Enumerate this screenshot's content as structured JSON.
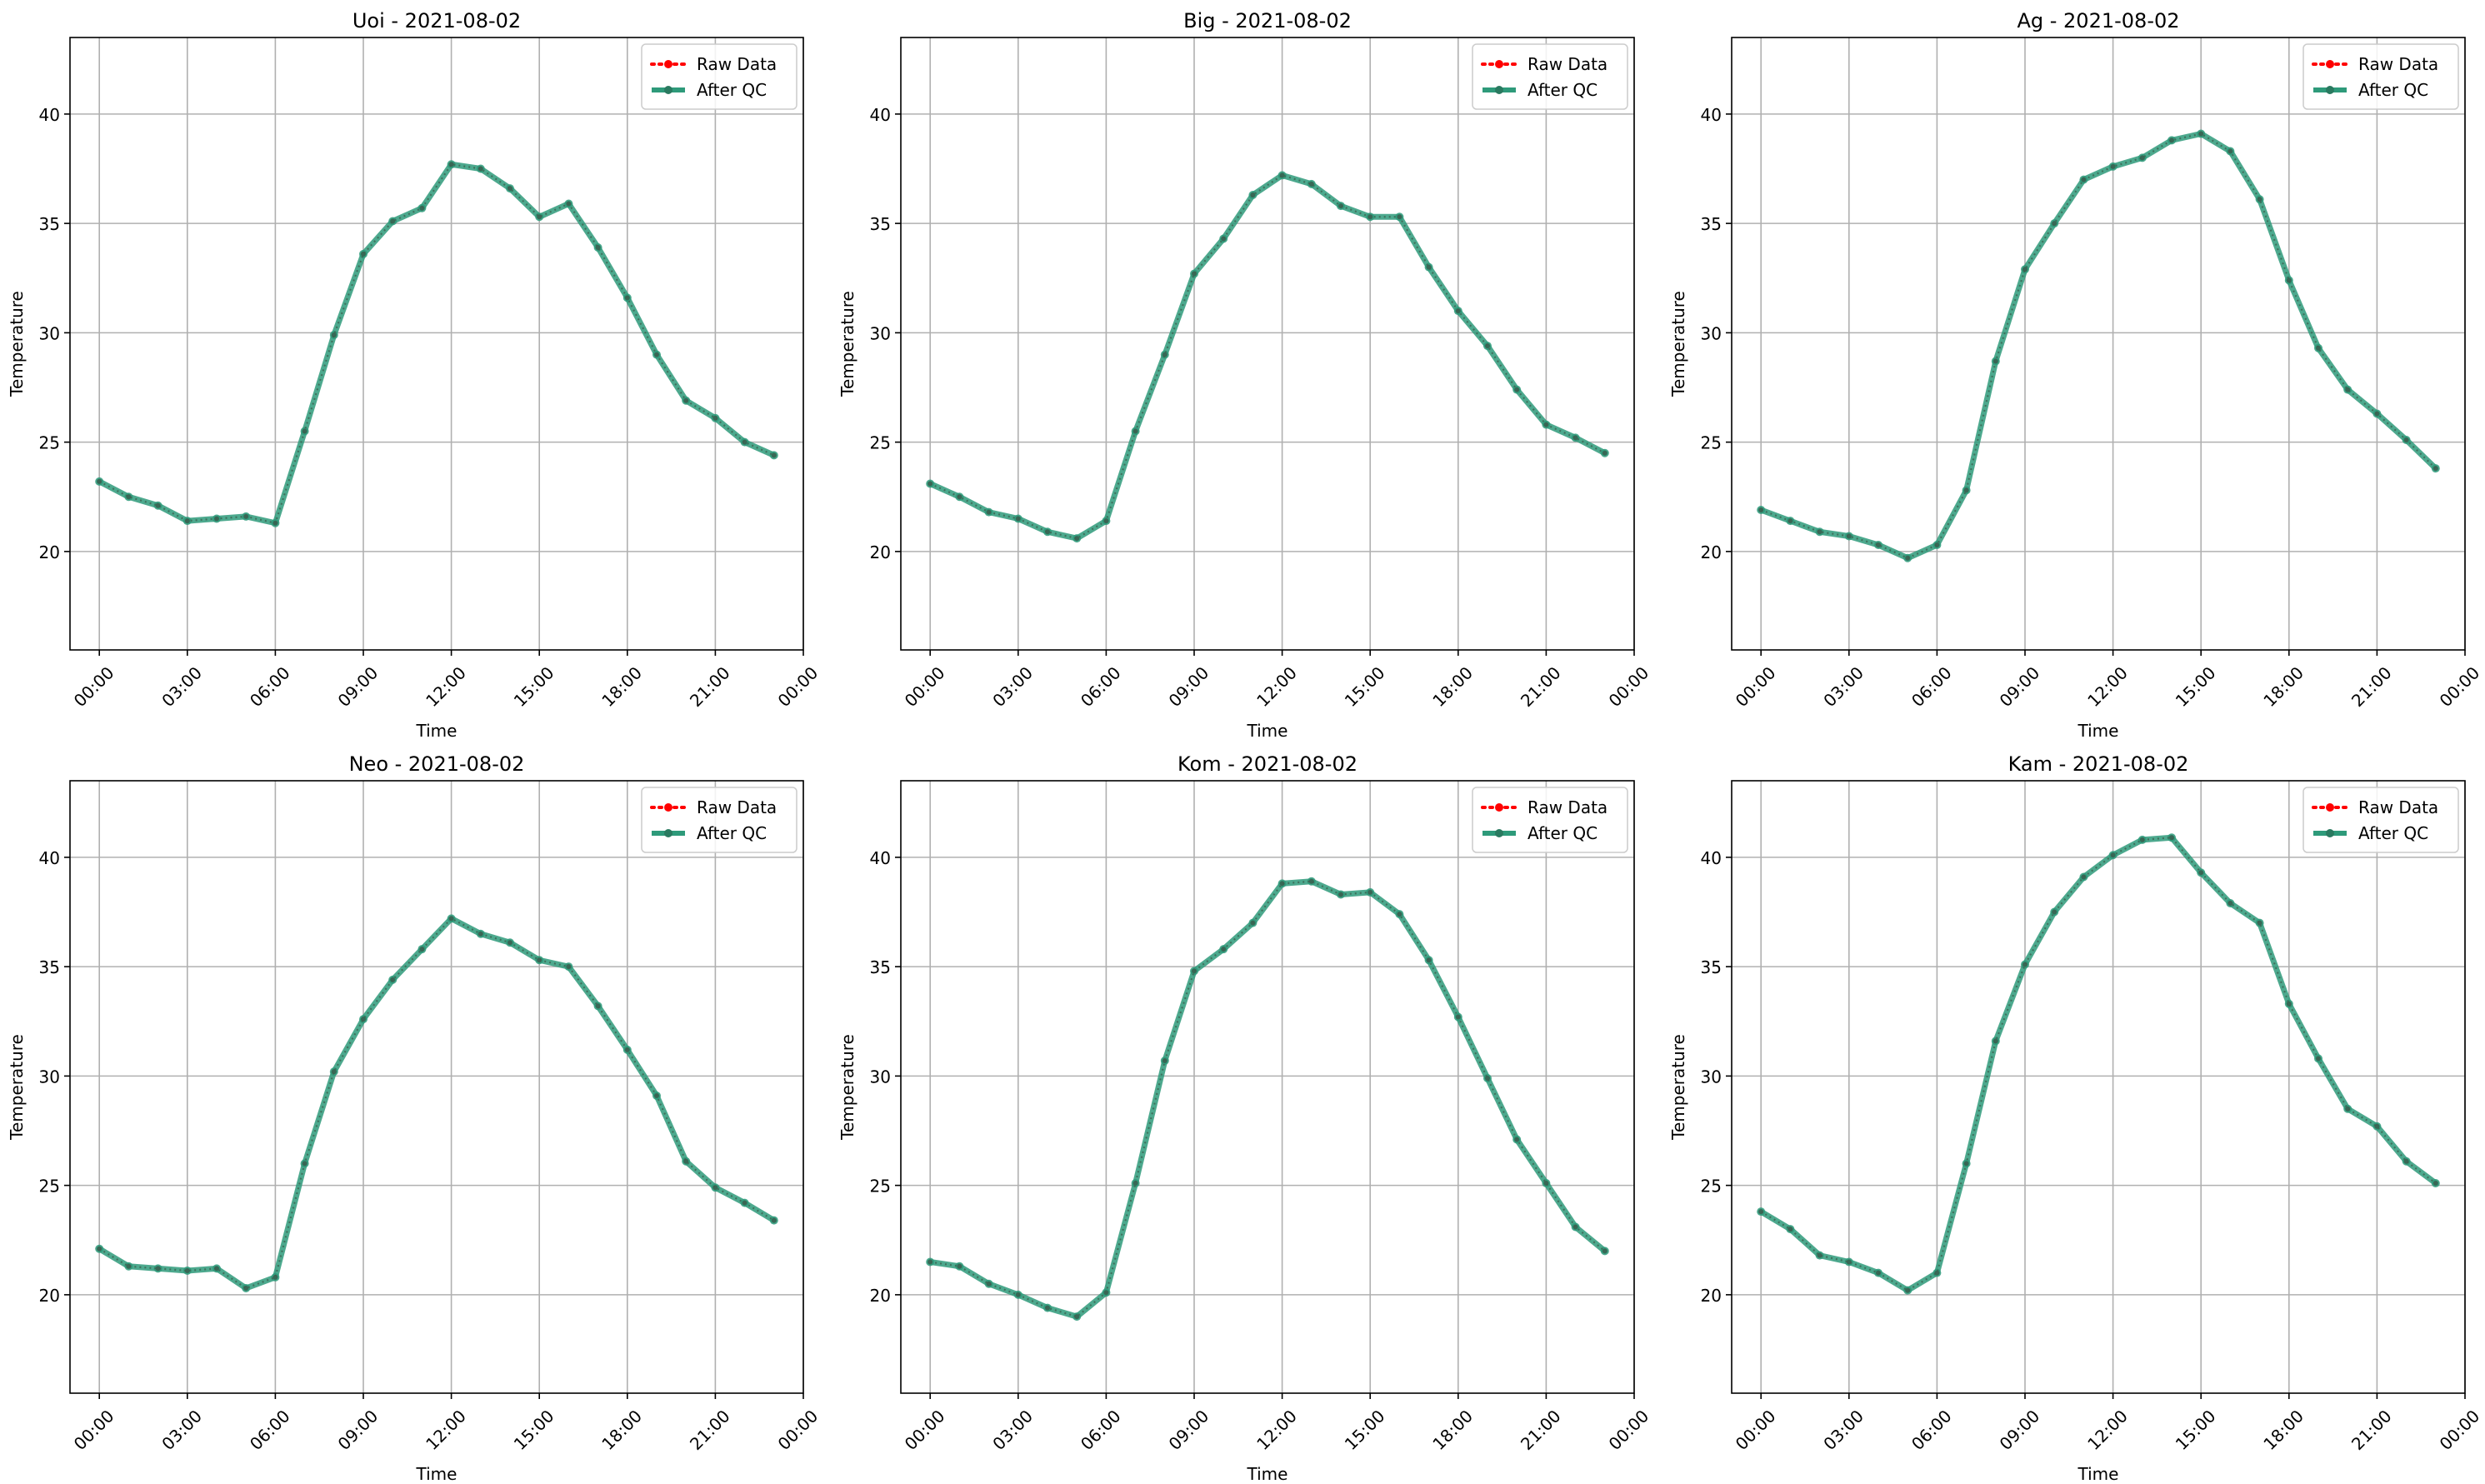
{
  "figure": {
    "background": "#ffffff",
    "raw_color": "#ff0000",
    "qc_color": "#2e9a7a",
    "grid_color": "#b0b0b0"
  },
  "chart_data": [
    {
      "type": "line",
      "title": "Uoi - 2021-08-02",
      "xlabel": "Time",
      "ylabel": "Temperature",
      "x_ticks": [
        "00:00",
        "03:00",
        "06:00",
        "09:00",
        "12:00",
        "15:00",
        "18:00",
        "21:00",
        "00:00"
      ],
      "y_ticks": [
        20,
        25,
        30,
        35,
        40
      ],
      "ylim": [
        15.5,
        43.5
      ],
      "xlim": [
        -1.0,
        24.0
      ],
      "grid": true,
      "legend": "top-right",
      "x": [
        0,
        1,
        2,
        3,
        4,
        5,
        6,
        7,
        8,
        9,
        10,
        11,
        12,
        13,
        14,
        15,
        16,
        17,
        18,
        19,
        20,
        21,
        22,
        23
      ],
      "series": [
        {
          "name": "Raw Data",
          "values": [
            23.2,
            22.5,
            22.1,
            21.4,
            21.5,
            21.6,
            21.3,
            25.5,
            29.9,
            33.6,
            35.1,
            35.7,
            37.7,
            37.5,
            36.6,
            35.3,
            35.9,
            33.9,
            31.6,
            29.0,
            26.9,
            26.1,
            25.0,
            24.4
          ]
        },
        {
          "name": "After QC",
          "values": [
            23.2,
            22.5,
            22.1,
            21.4,
            21.5,
            21.6,
            21.3,
            25.5,
            29.9,
            33.6,
            35.1,
            35.7,
            37.7,
            37.5,
            36.6,
            35.3,
            35.9,
            33.9,
            31.6,
            29.0,
            26.9,
            26.1,
            25.0,
            24.4
          ]
        }
      ]
    },
    {
      "type": "line",
      "title": "Big - 2021-08-02",
      "xlabel": "Time",
      "ylabel": "Temperature",
      "x_ticks": [
        "00:00",
        "03:00",
        "06:00",
        "09:00",
        "12:00",
        "15:00",
        "18:00",
        "21:00",
        "00:00"
      ],
      "y_ticks": [
        20,
        25,
        30,
        35,
        40
      ],
      "ylim": [
        15.5,
        43.5
      ],
      "xlim": [
        -1.0,
        24.0
      ],
      "grid": true,
      "legend": "top-right",
      "x": [
        0,
        1,
        2,
        3,
        4,
        5,
        6,
        7,
        8,
        9,
        10,
        11,
        12,
        13,
        14,
        15,
        16,
        17,
        18,
        19,
        20,
        21,
        22,
        23
      ],
      "series": [
        {
          "name": "Raw Data",
          "values": [
            23.1,
            22.5,
            21.8,
            21.5,
            20.9,
            20.6,
            21.4,
            25.5,
            29.0,
            32.7,
            34.3,
            36.3,
            37.2,
            36.8,
            35.8,
            35.3,
            35.3,
            33.0,
            31.0,
            29.4,
            27.4,
            25.8,
            25.2,
            24.5
          ]
        },
        {
          "name": "After QC",
          "values": [
            23.1,
            22.5,
            21.8,
            21.5,
            20.9,
            20.6,
            21.4,
            25.5,
            29.0,
            32.7,
            34.3,
            36.3,
            37.2,
            36.8,
            35.8,
            35.3,
            35.3,
            33.0,
            31.0,
            29.4,
            27.4,
            25.8,
            25.2,
            24.5
          ]
        }
      ]
    },
    {
      "type": "line",
      "title": "Ag - 2021-08-02",
      "xlabel": "Time",
      "ylabel": "Temperature",
      "x_ticks": [
        "00:00",
        "03:00",
        "06:00",
        "09:00",
        "12:00",
        "15:00",
        "18:00",
        "21:00",
        "00:00"
      ],
      "y_ticks": [
        20,
        25,
        30,
        35,
        40
      ],
      "ylim": [
        15.5,
        43.5
      ],
      "xlim": [
        -1.0,
        24.0
      ],
      "grid": true,
      "legend": "top-right",
      "x": [
        0,
        1,
        2,
        3,
        4,
        5,
        6,
        7,
        8,
        9,
        10,
        11,
        12,
        13,
        14,
        15,
        16,
        17,
        18,
        19,
        20,
        21,
        22,
        23
      ],
      "series": [
        {
          "name": "Raw Data",
          "values": [
            21.9,
            21.4,
            20.9,
            20.7,
            20.3,
            19.7,
            20.3,
            22.8,
            28.7,
            32.9,
            35.0,
            37.0,
            37.6,
            38.0,
            38.8,
            39.1,
            38.3,
            36.1,
            32.4,
            29.3,
            27.4,
            26.3,
            25.1,
            23.8
          ]
        },
        {
          "name": "After QC",
          "values": [
            21.9,
            21.4,
            20.9,
            20.7,
            20.3,
            19.7,
            20.3,
            22.8,
            28.7,
            32.9,
            35.0,
            37.0,
            37.6,
            38.0,
            38.8,
            39.1,
            38.3,
            36.1,
            32.4,
            29.3,
            27.4,
            26.3,
            25.1,
            23.8
          ]
        }
      ]
    },
    {
      "type": "line",
      "title": "Neo - 2021-08-02",
      "xlabel": "Time",
      "ylabel": "Temperature",
      "x_ticks": [
        "00:00",
        "03:00",
        "06:00",
        "09:00",
        "12:00",
        "15:00",
        "18:00",
        "21:00",
        "00:00"
      ],
      "y_ticks": [
        20,
        25,
        30,
        35,
        40
      ],
      "ylim": [
        15.5,
        43.5
      ],
      "xlim": [
        -1.0,
        24.0
      ],
      "grid": true,
      "legend": "top-right",
      "x": [
        0,
        1,
        2,
        3,
        4,
        5,
        6,
        7,
        8,
        9,
        10,
        11,
        12,
        13,
        14,
        15,
        16,
        17,
        18,
        19,
        20,
        21,
        22,
        23
      ],
      "series": [
        {
          "name": "Raw Data",
          "values": [
            22.1,
            21.3,
            21.2,
            21.1,
            21.2,
            20.3,
            20.8,
            26.0,
            30.2,
            32.6,
            34.4,
            35.8,
            37.2,
            36.5,
            36.1,
            35.3,
            35.0,
            33.2,
            31.2,
            29.1,
            26.1,
            24.9,
            24.2,
            23.4
          ]
        },
        {
          "name": "After QC",
          "values": [
            22.1,
            21.3,
            21.2,
            21.1,
            21.2,
            20.3,
            20.8,
            26.0,
            30.2,
            32.6,
            34.4,
            35.8,
            37.2,
            36.5,
            36.1,
            35.3,
            35.0,
            33.2,
            31.2,
            29.1,
            26.1,
            24.9,
            24.2,
            23.4
          ]
        }
      ]
    },
    {
      "type": "line",
      "title": "Kom - 2021-08-02",
      "xlabel": "Time",
      "ylabel": "Temperature",
      "x_ticks": [
        "00:00",
        "03:00",
        "06:00",
        "09:00",
        "12:00",
        "15:00",
        "18:00",
        "21:00",
        "00:00"
      ],
      "y_ticks": [
        20,
        25,
        30,
        35,
        40
      ],
      "ylim": [
        15.5,
        43.5
      ],
      "xlim": [
        -1.0,
        24.0
      ],
      "grid": true,
      "legend": "top-right",
      "x": [
        0,
        1,
        2,
        3,
        4,
        5,
        6,
        7,
        8,
        9,
        10,
        11,
        12,
        13,
        14,
        15,
        16,
        17,
        18,
        19,
        20,
        21,
        22,
        23
      ],
      "series": [
        {
          "name": "Raw Data",
          "values": [
            21.5,
            21.3,
            20.5,
            20.0,
            19.4,
            19.0,
            20.1,
            25.1,
            30.7,
            34.8,
            35.8,
            37.0,
            38.8,
            38.9,
            38.3,
            38.4,
            37.4,
            35.3,
            32.7,
            29.9,
            27.1,
            25.1,
            23.1,
            22.0
          ]
        },
        {
          "name": "After QC",
          "values": [
            21.5,
            21.3,
            20.5,
            20.0,
            19.4,
            19.0,
            20.1,
            25.1,
            30.7,
            34.8,
            35.8,
            37.0,
            38.8,
            38.9,
            38.3,
            38.4,
            37.4,
            35.3,
            32.7,
            29.9,
            27.1,
            25.1,
            23.1,
            22.0
          ]
        }
      ]
    },
    {
      "type": "line",
      "title": "Kam - 2021-08-02",
      "xlabel": "Time",
      "ylabel": "Temperature",
      "x_ticks": [
        "00:00",
        "03:00",
        "06:00",
        "09:00",
        "12:00",
        "15:00",
        "18:00",
        "21:00",
        "00:00"
      ],
      "y_ticks": [
        20,
        25,
        30,
        35,
        40
      ],
      "ylim": [
        15.5,
        43.5
      ],
      "xlim": [
        -1.0,
        24.0
      ],
      "grid": true,
      "legend": "top-right",
      "x": [
        0,
        1,
        2,
        3,
        4,
        5,
        6,
        7,
        8,
        9,
        10,
        11,
        12,
        13,
        14,
        15,
        16,
        17,
        18,
        19,
        20,
        21,
        22,
        23
      ],
      "series": [
        {
          "name": "Raw Data",
          "values": [
            23.8,
            23.0,
            21.8,
            21.5,
            21.0,
            20.2,
            21.0,
            26.0,
            31.6,
            35.1,
            37.5,
            39.1,
            40.1,
            40.8,
            40.9,
            39.3,
            37.9,
            37.0,
            33.3,
            30.8,
            28.5,
            27.7,
            26.1,
            25.1
          ]
        },
        {
          "name": "After QC",
          "values": [
            23.8,
            23.0,
            21.8,
            21.5,
            21.0,
            20.2,
            21.0,
            26.0,
            31.6,
            35.1,
            37.5,
            39.1,
            40.1,
            40.8,
            40.9,
            39.3,
            37.9,
            37.0,
            33.3,
            30.8,
            28.5,
            27.7,
            26.1,
            25.1
          ]
        }
      ]
    }
  ]
}
